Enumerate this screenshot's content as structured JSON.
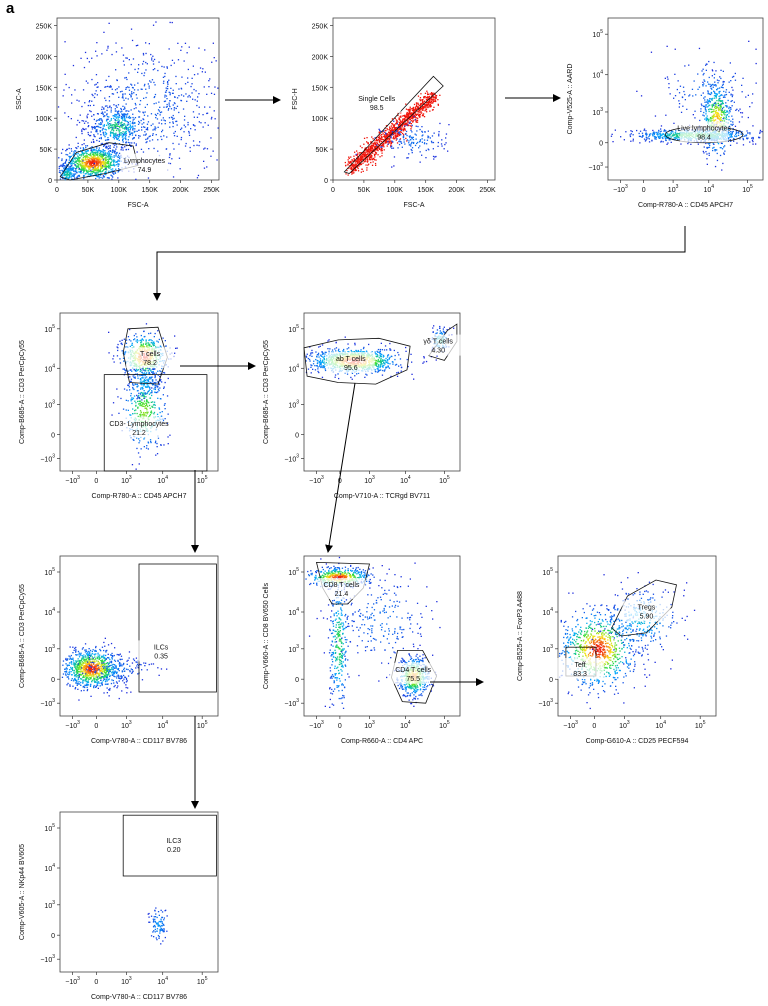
{
  "figure": {
    "panel_letter": "a"
  },
  "chart_data": [
    {
      "type": "scatter",
      "id": "fsc_ssc",
      "xlabel": "FSC-A",
      "ylabel": "SSC-A",
      "xticks": [
        "0",
        "50K",
        "100K",
        "150K",
        "200K",
        "250K"
      ],
      "yticks": [
        "0",
        "50K",
        "100K",
        "150K",
        "200K",
        "250K"
      ],
      "xlim": [
        0,
        262144
      ],
      "ylim": [
        0,
        262144
      ],
      "gates": [
        {
          "name": "Lymphocytes",
          "value": "74.9"
        }
      ]
    },
    {
      "type": "scatter",
      "id": "fsc_singlets",
      "xlabel": "FSC-A",
      "ylabel": "FSC-H",
      "xticks": [
        "0",
        "50K",
        "100K",
        "150K",
        "200K",
        "250K"
      ],
      "yticks": [
        "0",
        "50K",
        "100K",
        "150K",
        "200K",
        "250K"
      ],
      "xlim": [
        0,
        262144
      ],
      "ylim": [
        0,
        262144
      ],
      "gates": [
        {
          "name": "Single Cells",
          "value": "98.5"
        }
      ]
    },
    {
      "type": "scatter",
      "id": "live",
      "xlabel": "Comp-R780-A :: CD45 APCH7",
      "ylabel": "Comp-V525-A :: AARD",
      "xticks": [
        "-10^3",
        "0",
        "10^3",
        "10^4",
        "10^5"
      ],
      "yticks": [
        "-10^3",
        "0",
        "10^3",
        "10^4",
        "10^5"
      ],
      "scale": "biexponential",
      "gates": [
        {
          "name": "Live lymphocytes",
          "value": "98.4"
        }
      ]
    },
    {
      "type": "scatter",
      "id": "cd3",
      "xlabel": "Comp-R780-A :: CD45 APCH7",
      "ylabel": "Comp-B685-A :: CD3 PerCpCy55",
      "xticks": [
        "-10^3",
        "0",
        "10^3",
        "10^4",
        "10^5"
      ],
      "yticks": [
        "-10^3",
        "0",
        "10^3",
        "10^4",
        "10^5"
      ],
      "scale": "biexponential",
      "gates": [
        {
          "name": "T cells",
          "value": "78.2"
        },
        {
          "name": "CD3- Lymphocytes",
          "value": "21.2"
        }
      ]
    },
    {
      "type": "scatter",
      "id": "tcr",
      "xlabel": "Comp-V710-A :: TCRgd BV711",
      "ylabel": "Comp-B685-A :: CD3 PerCpCy55",
      "xticks": [
        "-10^3",
        "0",
        "10^3",
        "10^4",
        "10^5"
      ],
      "yticks": [
        "-10^3",
        "0",
        "10^3",
        "10^4",
        "10^5"
      ],
      "scale": "biexponential",
      "gates": [
        {
          "name": "ab T cells",
          "value": "95.6"
        },
        {
          "name": "γδ T cells",
          "value": "4.30"
        }
      ]
    },
    {
      "type": "scatter",
      "id": "ilc",
      "xlabel": "Comp-V780-A :: CD117 BV786",
      "ylabel": "Comp-B685-A :: CD3 PerCpCy55",
      "xticks": [
        "-10^3",
        "0",
        "10^3",
        "10^4",
        "10^5"
      ],
      "yticks": [
        "-10^3",
        "0",
        "10^3",
        "10^4",
        "10^5"
      ],
      "scale": "biexponential",
      "gates": [
        {
          "name": "ILCs",
          "value": "0.35"
        }
      ]
    },
    {
      "type": "scatter",
      "id": "cd4cd8",
      "xlabel": "Comp-R660-A :: CD4 APC",
      "ylabel": "Comp-V660-A :: CD8 BV650 Cells",
      "xticks": [
        "-10^3",
        "0",
        "10^3",
        "10^4",
        "10^5"
      ],
      "yticks": [
        "-10^3",
        "0",
        "10^3",
        "10^4",
        "10^5"
      ],
      "scale": "biexponential",
      "gates": [
        {
          "name": "CD8 T cells",
          "value": "21.4"
        },
        {
          "name": "CD4 T cells",
          "value": "75.5"
        }
      ]
    },
    {
      "type": "scatter",
      "id": "treg",
      "xlabel": "Comp-G610-A :: CD25 PECF594",
      "ylabel": "Comp-B525-A :: FoxP3 A488",
      "xticks": [
        "-10^3",
        "0",
        "10^3",
        "10^4",
        "10^5"
      ],
      "yticks": [
        "-10^3",
        "0",
        "10^3",
        "10^4",
        "10^5"
      ],
      "scale": "biexponential",
      "gates": [
        {
          "name": "Tregs",
          "value": "5.90"
        },
        {
          "name": "Teff",
          "value": "83.3"
        }
      ]
    },
    {
      "type": "scatter",
      "id": "ilc3",
      "xlabel": "Comp-V780-A :: CD117 BV786",
      "ylabel": "Comp-V605-A :: NKp44 BV605",
      "xticks": [
        "-10^3",
        "0",
        "10^3",
        "10^4",
        "10^5"
      ],
      "yticks": [
        "-10^3",
        "0",
        "10^3",
        "10^4",
        "10^5"
      ],
      "scale": "biexponential",
      "gates": [
        {
          "name": "ILC3",
          "value": "0.20"
        }
      ]
    }
  ]
}
